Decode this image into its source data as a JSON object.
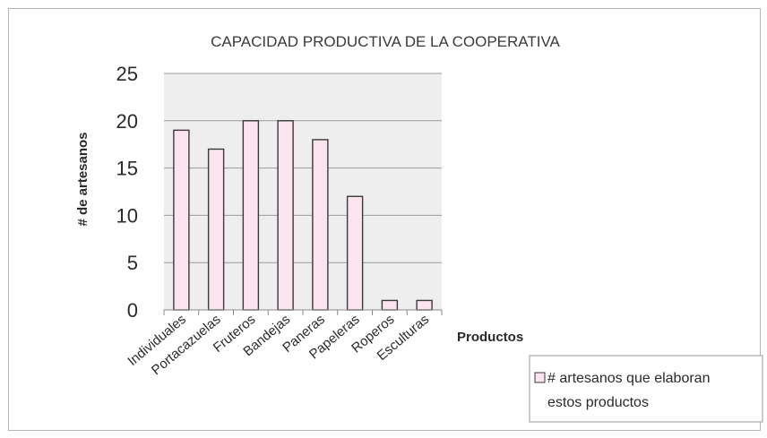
{
  "chart_data": {
    "type": "bar",
    "title": "CAPACIDAD PRODUCTIVA DE LA COOPERATIVA",
    "xlabel": "Productos",
    "ylabel": "# de artesanos",
    "categories": [
      "Individuales",
      "Portacazuelas",
      "Fruteros",
      "Bandejas",
      "Paneras",
      "Papeleras",
      "Roperos",
      "Esculturas"
    ],
    "series": [
      {
        "name": "# artesanos que elaboran estos productos",
        "values": [
          19,
          17,
          20,
          20,
          18,
          12,
          1,
          1
        ]
      }
    ],
    "ylim": [
      0,
      25
    ],
    "yticks": [
      0,
      5,
      10,
      15,
      20,
      25
    ],
    "grid": true,
    "legend": "bottom-right",
    "colors": {
      "bar_fill": "#fbe3ef",
      "bar_stroke": "#3a3a3a",
      "plot_bg": "#eeeeee",
      "grid": "#9a9a9a"
    }
  },
  "legend": {
    "line1": "# artesanos que elaboran",
    "line2": "estos productos"
  }
}
